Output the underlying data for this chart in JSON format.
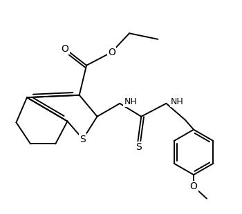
{
  "bg": "#ffffff",
  "lc": "#000000",
  "lw": 1.4,
  "fs": 9.0,
  "dpi": 100,
  "fw": 3.5,
  "fh": 3.1,
  "xlim": [
    0,
    10
  ],
  "ylim": [
    0,
    9
  ]
}
